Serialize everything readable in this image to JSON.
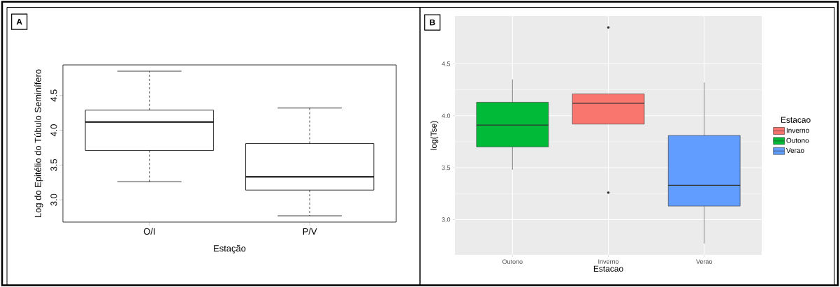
{
  "chart_data": [
    {
      "type": "box",
      "title": "A",
      "xlabel": "Estação",
      "ylabel": "Log do Epitélio do Túbulo Seminífero",
      "categories": [
        "O/I",
        "P/V"
      ],
      "boxes": [
        {
          "low": 3.26,
          "q1": 3.71,
          "median": 4.12,
          "q3": 4.29,
          "high": 4.85
        },
        {
          "low": 2.77,
          "q1": 3.14,
          "median": 3.33,
          "q3": 3.81,
          "high": 4.32
        }
      ],
      "color": "#000000",
      "ylim": [
        2.68,
        4.94
      ],
      "yticks": [
        {
          "value": 3,
          "label": "3.0"
        },
        {
          "value": 3.5,
          "label": "3.5"
        },
        {
          "value": 4,
          "label": "4.0"
        },
        {
          "value": 4.5,
          "label": "4.5"
        }
      ],
      "grid": false
    },
    {
      "type": "box",
      "title": "B",
      "xlabel": "Estacao",
      "ylabel": "log(Tse)",
      "legend_title": "Estacao",
      "categories": [
        "Outono",
        "Inverno",
        "Verao"
      ],
      "series": [
        {
          "name": "Inverno",
          "color": "#f8766d",
          "boxes": [
            null,
            {
              "low": 3.92,
              "q1": 3.92,
              "median": 4.12,
              "q3": 4.21,
              "high": 4.21,
              "outliers": [
                4.85,
                3.26
              ]
            },
            null
          ]
        },
        {
          "name": "Outono",
          "color": "#00ba38",
          "boxes": [
            {
              "low": 3.48,
              "q1": 3.7,
              "median": 3.91,
              "q3": 4.13,
              "high": 4.35
            },
            null,
            null
          ]
        },
        {
          "name": "Verao",
          "color": "#619cff",
          "boxes": [
            null,
            null,
            {
              "low": 2.77,
              "q1": 3.13,
              "median": 3.33,
              "q3": 3.81,
              "high": 4.32
            }
          ]
        }
      ],
      "ylim": [
        2.66,
        4.96
      ],
      "yticks": [
        {
          "value": 3,
          "label": "3.0"
        },
        {
          "value": 3.5,
          "label": "3.5"
        },
        {
          "value": 4,
          "label": "4.0"
        },
        {
          "value": 4.5,
          "label": "4.5"
        }
      ],
      "grid": true,
      "legend": "right"
    }
  ]
}
